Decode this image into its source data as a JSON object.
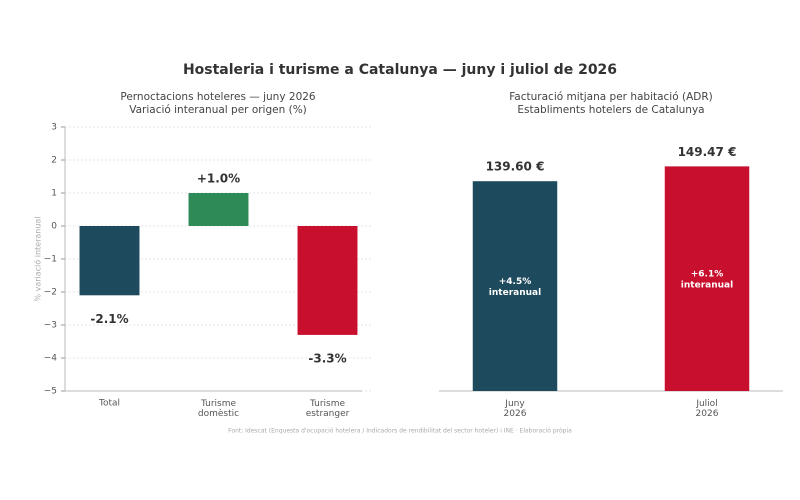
{
  "title": "Hostaleria i turisme a Catalunya — juny i juliol de 2026",
  "source": "Font: Idescat (Enquesta d'ocupació hotelera / Indicadors de rendibilitat del sector hoteler) i INE · Elaboració pròpia",
  "chart_data": [
    {
      "type": "bar",
      "title": "Pernoctacions hoteleres — juny 2026\nVariació interanual per origen (%)",
      "y_label": "% variació interanual",
      "categories": [
        "Total",
        "Turisme\ndomèstic",
        "Turisme\nestranger"
      ],
      "values": [
        -2.1,
        1.0,
        -3.3
      ],
      "value_labels": [
        "-2.1%",
        "+1.0%",
        "-3.3%"
      ],
      "colors": [
        "#1d4a5c",
        "#2e8b57",
        "#c8102e"
      ],
      "ylim": [
        -5,
        3
      ],
      "yticks": [
        {
          "value": -5,
          "label": "−5"
        },
        {
          "value": -4,
          "label": "−4"
        },
        {
          "value": -3,
          "label": "−3"
        },
        {
          "value": -2,
          "label": "−2"
        },
        {
          "value": -1,
          "label": "−1"
        },
        0,
        1,
        2,
        3
      ],
      "grid": true
    },
    {
      "type": "bar",
      "title": "Facturació mitjana per habitació (ADR)\nEstabliments hotelers de Catalunya",
      "categories": [
        "Juny\n2026",
        "Juliol\n2026"
      ],
      "values": [
        139.6,
        149.47
      ],
      "value_labels": [
        "139.60 €",
        "149.47 €"
      ],
      "inner_labels": [
        "+4.5%\ninteranual",
        "+6.1%\ninteranual"
      ],
      "colors": [
        "#1d4a5c",
        "#c8102e"
      ],
      "ylim": [
        0,
        177
      ],
      "grid": false
    }
  ]
}
